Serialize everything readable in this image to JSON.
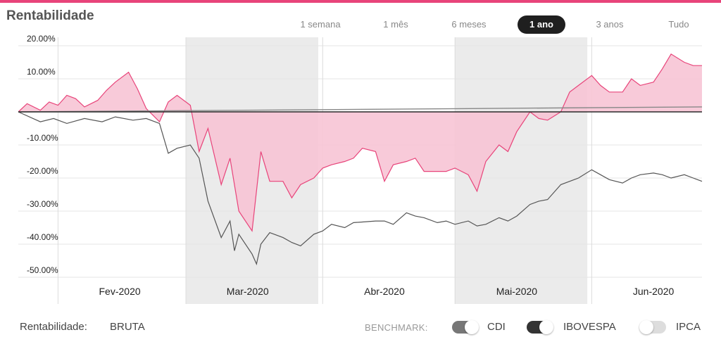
{
  "title": "Rentabilidade",
  "periods": [
    {
      "label": "1 semana",
      "active": false
    },
    {
      "label": "1 mês",
      "active": false
    },
    {
      "label": "6 meses",
      "active": false
    },
    {
      "label": "1 ano",
      "active": true
    },
    {
      "label": "3 anos",
      "active": false
    },
    {
      "label": "Tudo",
      "active": false
    }
  ],
  "footer": {
    "rentabilidade_label": "Rentabilidade:",
    "rentabilidade_value": "BRUTA",
    "benchmark_label": "BENCHMARK:",
    "benchmarks": [
      {
        "name": "CDI",
        "on": true
      },
      {
        "name": "IBOVESPA",
        "on": true
      },
      {
        "name": "IPCA",
        "on": false
      }
    ]
  },
  "colors": {
    "accent": "#e8447a",
    "fund_fill": "#f7c4d5",
    "ibov_line": "#555555",
    "cdi_line": "#888888",
    "shade": "#ebebeb"
  },
  "chart_data": {
    "type": "area",
    "ylim": [
      -50,
      20
    ],
    "yticks": [
      20,
      10,
      0,
      -10,
      -20,
      -30,
      -40,
      -50
    ],
    "ytick_labels": [
      "20.00%",
      "10.00%",
      "",
      "-10.00%",
      "-20.00%",
      "-30.00%",
      "-40.00%",
      "-50.00%"
    ],
    "x_start": "2020-01-23",
    "x_end": "2020-06-26",
    "month_labels": [
      {
        "label": "Fev-2020",
        "date": "2020-02-15"
      },
      {
        "label": "Mar-2020",
        "date": "2020-03-15"
      },
      {
        "label": "Abr-2020",
        "date": "2020-04-15"
      },
      {
        "label": "Mai-2020",
        "date": "2020-05-15"
      },
      {
        "label": "Jun-2020",
        "date": "2020-06-15"
      }
    ],
    "shaded_months": [
      {
        "from": "2020-03-01",
        "to": "2020-03-31"
      },
      {
        "from": "2020-05-01",
        "to": "2020-05-31"
      }
    ],
    "month_gridlines": [
      "2020-02-01",
      "2020-03-01",
      "2020-04-01",
      "2020-05-01",
      "2020-06-01"
    ],
    "series": [
      {
        "style": "fill",
        "x": [
          "2020-01-23",
          "2020-01-25",
          "2020-01-28",
          "2020-01-30",
          "2020-02-01",
          "2020-02-03",
          "2020-02-05",
          "2020-02-07",
          "2020-02-10",
          "2020-02-12",
          "2020-02-14",
          "2020-02-17",
          "2020-02-19",
          "2020-02-21",
          "2020-02-24",
          "2020-02-26",
          "2020-02-28",
          "2020-03-02",
          "2020-03-04",
          "2020-03-06",
          "2020-03-09",
          "2020-03-11",
          "2020-03-13",
          "2020-03-16",
          "2020-03-18",
          "2020-03-20",
          "2020-03-23",
          "2020-03-25",
          "2020-03-27",
          "2020-03-30",
          "2020-04-01",
          "2020-04-03",
          "2020-04-06",
          "2020-04-08",
          "2020-04-10",
          "2020-04-13",
          "2020-04-15",
          "2020-04-17",
          "2020-04-20",
          "2020-04-22",
          "2020-04-24",
          "2020-04-27",
          "2020-04-29",
          "2020-05-01",
          "2020-05-04",
          "2020-05-06",
          "2020-05-08",
          "2020-05-11",
          "2020-05-13",
          "2020-05-15",
          "2020-05-18",
          "2020-05-20",
          "2020-05-22",
          "2020-05-25",
          "2020-05-27",
          "2020-05-29",
          "2020-06-01",
          "2020-06-03",
          "2020-06-05",
          "2020-06-08",
          "2020-06-10",
          "2020-06-12",
          "2020-06-15",
          "2020-06-17",
          "2020-06-19",
          "2020-06-22",
          "2020-06-24",
          "2020-06-26"
        ],
        "y": [
          0.0,
          2.5,
          0.5,
          3.0,
          2.0,
          5.0,
          4.0,
          1.5,
          3.5,
          6.5,
          9.0,
          12.0,
          7.0,
          1.0,
          -3.0,
          3.0,
          5.0,
          2.0,
          -12.0,
          -5.0,
          -22.0,
          -14.0,
          -30.0,
          -36.0,
          -12.0,
          -21.0,
          -21.0,
          -26.0,
          -22.0,
          -20.0,
          -17.0,
          -16.0,
          -15.0,
          -14.0,
          -11.0,
          -12.0,
          -21.0,
          -16.0,
          -15.0,
          -14.0,
          -18.0,
          -18.0,
          -18.0,
          -17.0,
          -19.0,
          -24.0,
          -15.0,
          -10.0,
          -12.0,
          -6.0,
          0.0,
          -2.0,
          -2.5,
          0.0,
          6.0,
          8.0,
          11.0,
          8.0,
          6.0,
          6.0,
          10.0,
          8.0,
          9.0,
          13.0,
          17.5,
          15.0,
          14.0,
          14.0
        ]
      },
      {
        "style": "line",
        "x": [
          "2020-01-23",
          "2020-01-28",
          "2020-01-31",
          "2020-02-03",
          "2020-02-07",
          "2020-02-11",
          "2020-02-14",
          "2020-02-18",
          "2020-02-21",
          "2020-02-24",
          "2020-02-26",
          "2020-02-28",
          "2020-03-02",
          "2020-03-04",
          "2020-03-06",
          "2020-03-09",
          "2020-03-11",
          "2020-03-12",
          "2020-03-13",
          "2020-03-16",
          "2020-03-17",
          "2020-03-18",
          "2020-03-20",
          "2020-03-23",
          "2020-03-25",
          "2020-03-27",
          "2020-03-30",
          "2020-04-01",
          "2020-04-03",
          "2020-04-06",
          "2020-04-08",
          "2020-04-13",
          "2020-04-15",
          "2020-04-17",
          "2020-04-20",
          "2020-04-22",
          "2020-04-24",
          "2020-04-27",
          "2020-04-29",
          "2020-05-01",
          "2020-05-04",
          "2020-05-06",
          "2020-05-08",
          "2020-05-11",
          "2020-05-13",
          "2020-05-15",
          "2020-05-18",
          "2020-05-20",
          "2020-05-22",
          "2020-05-25",
          "2020-05-27",
          "2020-05-29",
          "2020-06-01",
          "2020-06-03",
          "2020-06-05",
          "2020-06-08",
          "2020-06-10",
          "2020-06-12",
          "2020-06-15",
          "2020-06-17",
          "2020-06-19",
          "2020-06-22",
          "2020-06-24",
          "2020-06-26"
        ],
        "y": [
          0.0,
          -3.0,
          -2.0,
          -3.5,
          -2.0,
          -3.0,
          -1.5,
          -2.5,
          -2.0,
          -3.5,
          -12.5,
          -11.0,
          -10.0,
          -14.0,
          -27.0,
          -38.0,
          -33.0,
          -42.0,
          -37.0,
          -43.0,
          -46.0,
          -40.0,
          -36.5,
          -38.0,
          -39.5,
          -40.5,
          -37.0,
          -36.0,
          -34.0,
          -35.0,
          -33.5,
          -33.0,
          -33.0,
          -34.0,
          -30.5,
          -31.5,
          -32.0,
          -33.5,
          -33.0,
          -34.0,
          -33.0,
          -34.5,
          -34.0,
          -32.0,
          -33.0,
          -31.5,
          -28.0,
          -27.0,
          -26.5,
          -22.0,
          -21.0,
          -20.0,
          -17.5,
          -19.0,
          -20.5,
          -21.5,
          -20.0,
          -19.0,
          -18.5,
          -19.0,
          -20.0,
          -19.0,
          -20.0,
          -21.0
        ]
      },
      {
        "style": "line",
        "x": [
          "2020-01-23",
          "2020-06-26"
        ],
        "y": [
          0.0,
          1.5
        ]
      }
    ]
  }
}
